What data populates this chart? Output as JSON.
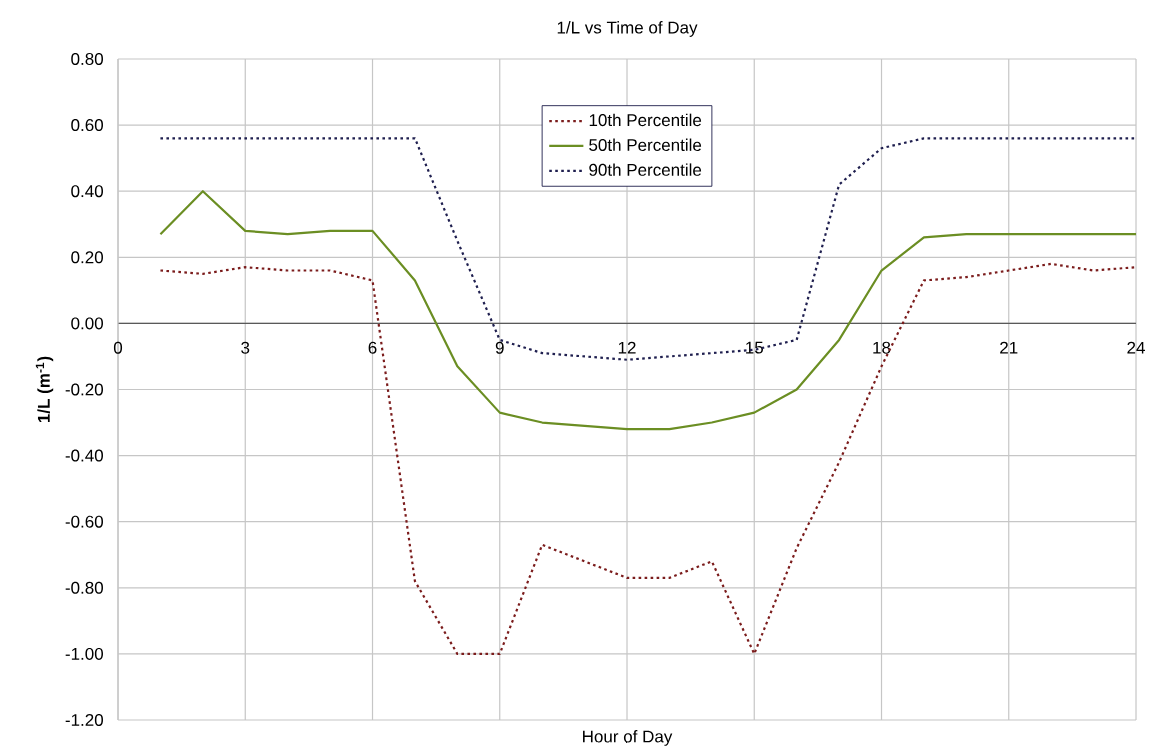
{
  "chart_data": {
    "type": "line",
    "title": "1/L vs Time of Day",
    "xlabel": "Hour of Day",
    "ylabel": "1/L (m$^{-1}$)",
    "x": [
      1,
      2,
      3,
      4,
      5,
      6,
      7,
      8,
      9,
      10,
      11,
      12,
      13,
      14,
      15,
      16,
      17,
      18,
      19,
      20,
      21,
      22,
      23,
      24
    ],
    "series": [
      {
        "name": "10th Percentile",
        "color": "#7b1c1c",
        "line_style": "dotted",
        "values": [
          0.16,
          0.15,
          0.17,
          0.16,
          0.16,
          0.13,
          -0.78,
          -1.0,
          -1.0,
          -0.67,
          -0.72,
          -0.77,
          -0.77,
          -0.72,
          -1.0,
          -0.68,
          -0.42,
          -0.13,
          0.13,
          0.14,
          0.16,
          0.18,
          0.16,
          0.17
        ]
      },
      {
        "name": "50th Percentile",
        "color": "#6b8e23",
        "line_style": "solid",
        "values": [
          0.27,
          0.4,
          0.28,
          0.27,
          0.28,
          0.28,
          0.13,
          -0.13,
          -0.27,
          -0.3,
          -0.31,
          -0.32,
          -0.32,
          -0.3,
          -0.27,
          -0.2,
          -0.05,
          0.16,
          0.26,
          0.27,
          0.27,
          0.27,
          0.27,
          0.27
        ]
      },
      {
        "name": "90th Percentile",
        "color": "#1f1f4f",
        "line_style": "dotted",
        "values": [
          0.56,
          0.56,
          0.56,
          0.56,
          0.56,
          0.56,
          0.56,
          0.25,
          -0.05,
          -0.09,
          -0.1,
          -0.11,
          -0.1,
          -0.09,
          -0.08,
          -0.05,
          0.42,
          0.53,
          0.56,
          0.56,
          0.56,
          0.56,
          0.56,
          0.56
        ]
      }
    ],
    "xlim": [
      0,
      24
    ],
    "xticks": [
      0,
      3,
      6,
      9,
      12,
      15,
      18,
      21,
      24
    ],
    "ylim": [
      -1.2,
      0.8
    ],
    "yticks": [
      {
        "value": -1.2,
        "label": "-1.20"
      },
      {
        "value": -1.0,
        "label": "-1.00"
      },
      {
        "value": -0.8,
        "label": "-0.80"
      },
      {
        "value": -0.6,
        "label": "-0.60"
      },
      {
        "value": -0.4,
        "label": "-0.40"
      },
      {
        "value": -0.2,
        "label": "-0.20"
      },
      {
        "value": 0,
        "label": "0.00"
      },
      {
        "value": 0.2,
        "label": "0.20"
      },
      {
        "value": 0.4,
        "label": "0.40"
      },
      {
        "value": 0.6,
        "label": "0.60"
      },
      {
        "value": 0.8,
        "label": "0.80"
      }
    ],
    "grid": true,
    "legend": "top",
    "marker": "none"
  }
}
